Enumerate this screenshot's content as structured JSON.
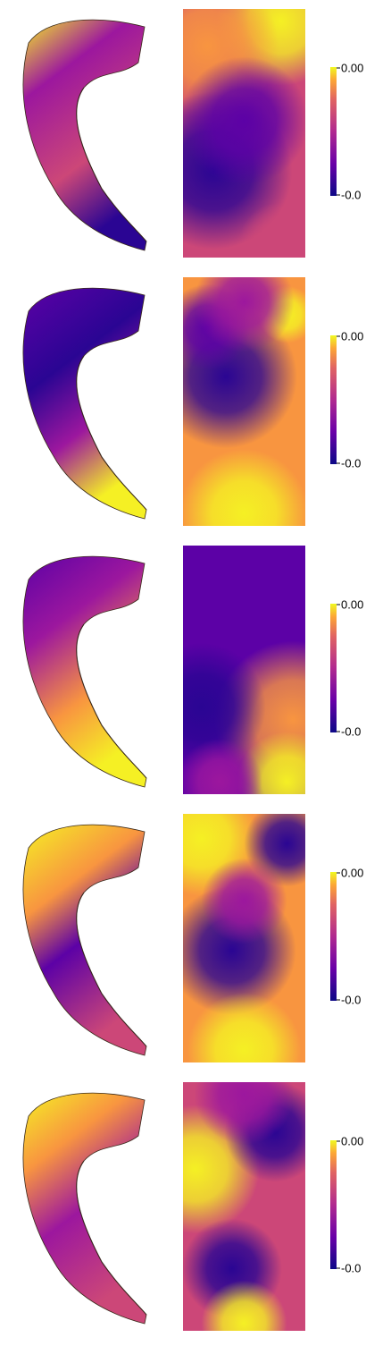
{
  "panels": [
    {
      "colorbar": {
        "max_label": "0.00",
        "min_label": "-0.0"
      }
    },
    {
      "colorbar": {
        "max_label": "0.00",
        "min_label": "-0.0"
      }
    },
    {
      "colorbar": {
        "max_label": "0.00",
        "min_label": "-0.0"
      }
    },
    {
      "colorbar": {
        "max_label": "0.00",
        "min_label": "-0.0"
      }
    },
    {
      "colorbar": {
        "max_label": "0.00",
        "min_label": "-0.0"
      }
    }
  ]
}
